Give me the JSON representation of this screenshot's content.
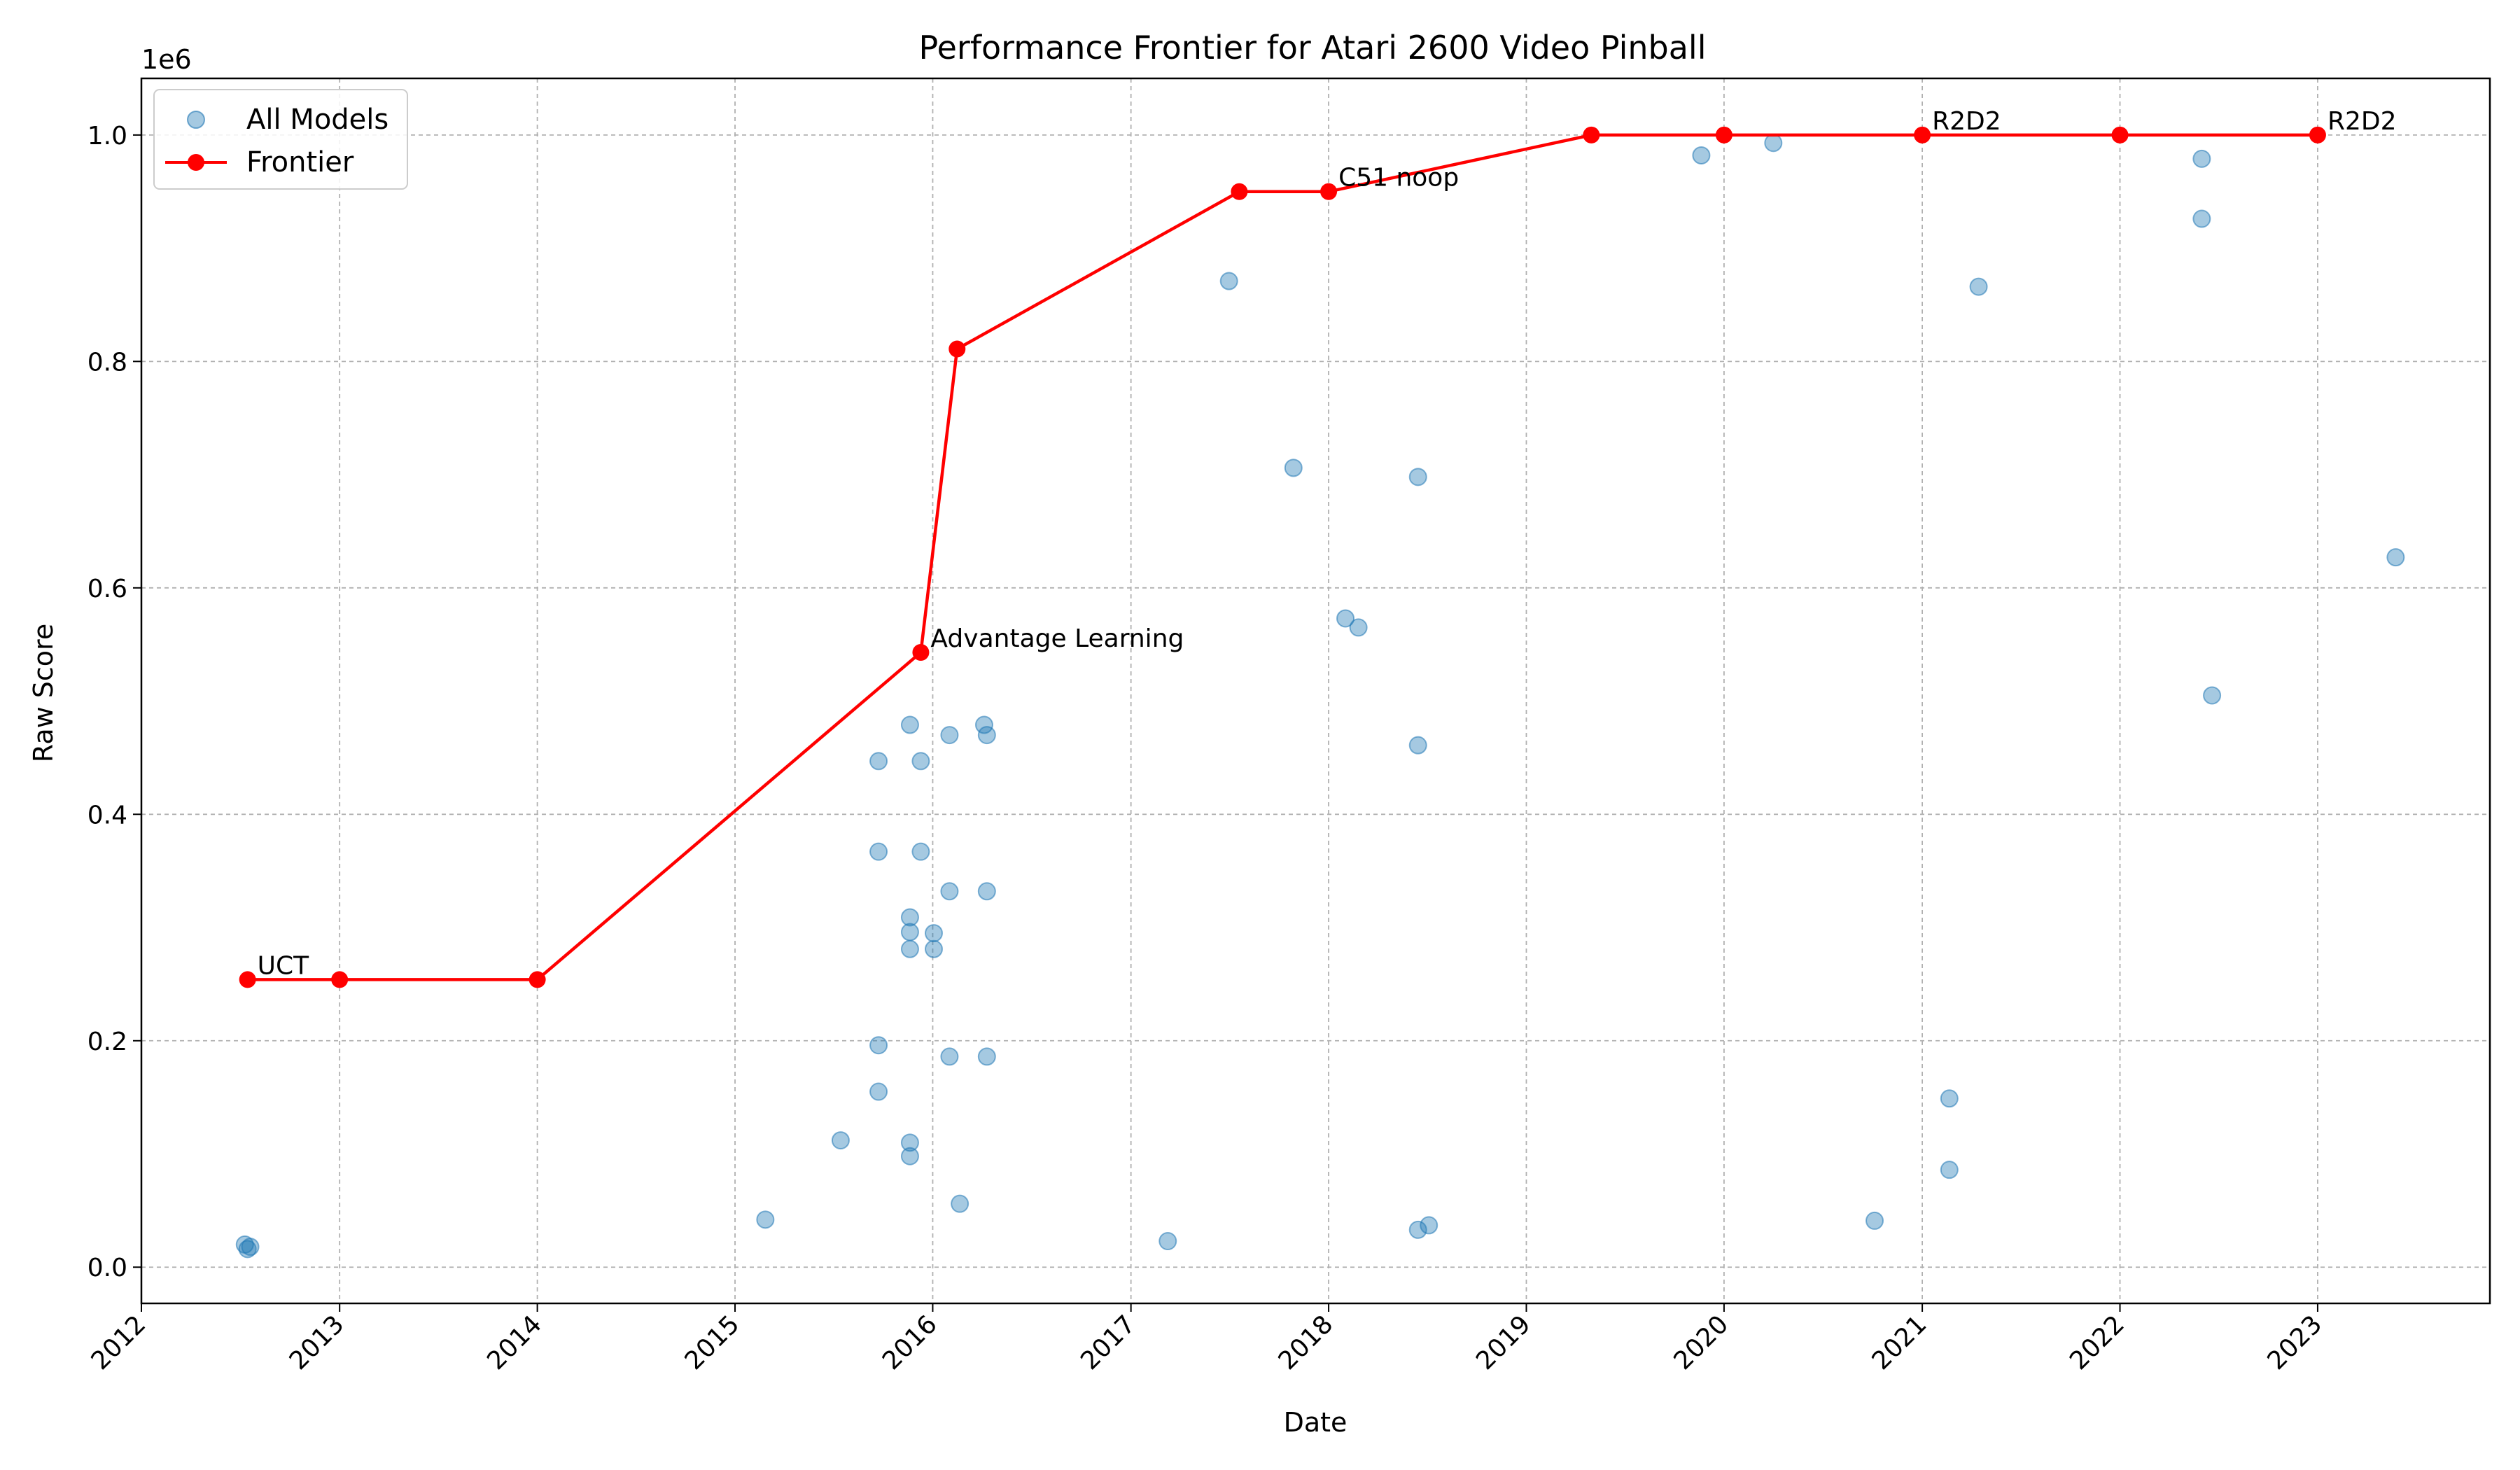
{
  "chart_data": {
    "type": "scatter",
    "title": "Performance Frontier for Atari 2600 Video Pinball",
    "xlabel": "Date",
    "ylabel": "Raw Score",
    "y_offset_label": "1e6",
    "xlim": [
      "2012-01-01",
      "2023-11-15"
    ],
    "ylim": [
      -0.032,
      1.05
    ],
    "y_scale": 1000000,
    "x_ticks": [
      "2012",
      "2013",
      "2014",
      "2015",
      "2016",
      "2017",
      "2018",
      "2019",
      "2020",
      "2021",
      "2022",
      "2023"
    ],
    "y_ticks": [
      "0.0",
      "0.2",
      "0.4",
      "0.6",
      "0.8",
      "1.0"
    ],
    "grid": true,
    "legend": {
      "placement": "top-left",
      "entries": [
        "All Models",
        "Frontier"
      ]
    },
    "colors": {
      "scatter": "#1f77b4",
      "frontier": "#ff0000"
    },
    "series": [
      {
        "name": "All Models",
        "type": "scatter",
        "points": [
          [
            "2012-07-10",
            20000
          ],
          [
            "2012-07-15",
            16000
          ],
          [
            "2012-07-20",
            18000
          ],
          [
            "2015-02-26",
            42000
          ],
          [
            "2015-07-15",
            112000
          ],
          [
            "2015-09-23",
            447000
          ],
          [
            "2015-09-23",
            367000
          ],
          [
            "2015-09-23",
            196000
          ],
          [
            "2015-09-23",
            155000
          ],
          [
            "2015-11-20",
            479000
          ],
          [
            "2015-11-20",
            309000
          ],
          [
            "2015-11-20",
            296000
          ],
          [
            "2015-11-20",
            281000
          ],
          [
            "2015-11-20",
            110000
          ],
          [
            "2015-11-20",
            98000
          ],
          [
            "2015-12-10",
            447000
          ],
          [
            "2015-12-10",
            367000
          ],
          [
            "2016-01-03",
            295000
          ],
          [
            "2016-01-03",
            281000
          ],
          [
            "2016-02-01",
            470000
          ],
          [
            "2016-02-01",
            332000
          ],
          [
            "2016-02-01",
            186000
          ],
          [
            "2016-02-20",
            56000
          ],
          [
            "2016-04-05",
            479000
          ],
          [
            "2016-04-10",
            470000
          ],
          [
            "2016-04-10",
            332000
          ],
          [
            "2016-04-10",
            186000
          ],
          [
            "2017-03-10",
            23000
          ],
          [
            "2017-07-01",
            871000
          ],
          [
            "2017-10-28",
            706000
          ],
          [
            "2018-02-01",
            573000
          ],
          [
            "2018-02-25",
            565000
          ],
          [
            "2018-06-15",
            698000
          ],
          [
            "2018-06-15",
            461000
          ],
          [
            "2018-06-15",
            33000
          ],
          [
            "2018-07-05",
            37000
          ],
          [
            "2019-11-20",
            982000
          ],
          [
            "2020-04-01",
            993000
          ],
          [
            "2020-10-05",
            41000
          ],
          [
            "2021-02-20",
            149000
          ],
          [
            "2021-02-20",
            86000
          ],
          [
            "2021-04-15",
            866000
          ],
          [
            "2022-06-01",
            979000
          ],
          [
            "2022-06-01",
            926000
          ],
          [
            "2022-06-20",
            505000
          ],
          [
            "2023-05-25",
            627000
          ]
        ]
      },
      {
        "name": "Frontier",
        "type": "line",
        "points": [
          [
            "2012-07-15",
            254000
          ],
          [
            "2013-01-01",
            254000
          ],
          [
            "2014-01-01",
            254000
          ],
          [
            "2015-12-10",
            543000
          ],
          [
            "2016-02-15",
            811000
          ],
          [
            "2017-07-20",
            950000
          ],
          [
            "2018-01-01",
            950000
          ],
          [
            "2019-05-01",
            1000000
          ],
          [
            "2020-01-01",
            1000000
          ],
          [
            "2021-01-01",
            1000000
          ],
          [
            "2022-01-01",
            1000000
          ],
          [
            "2023-01-01",
            1000000
          ]
        ]
      }
    ],
    "annotations": [
      {
        "text": "UCT",
        "x": "2012-07-15",
        "y": 254000
      },
      {
        "text": "Advantage Learning",
        "x": "2015-12-10",
        "y": 543000
      },
      {
        "text": "C51 noop",
        "x": "2018-01-01",
        "y": 950000
      },
      {
        "text": "R2D2",
        "x": "2021-01-01",
        "y": 1000000
      },
      {
        "text": "R2D2",
        "x": "2023-01-01",
        "y": 1000000
      }
    ]
  }
}
